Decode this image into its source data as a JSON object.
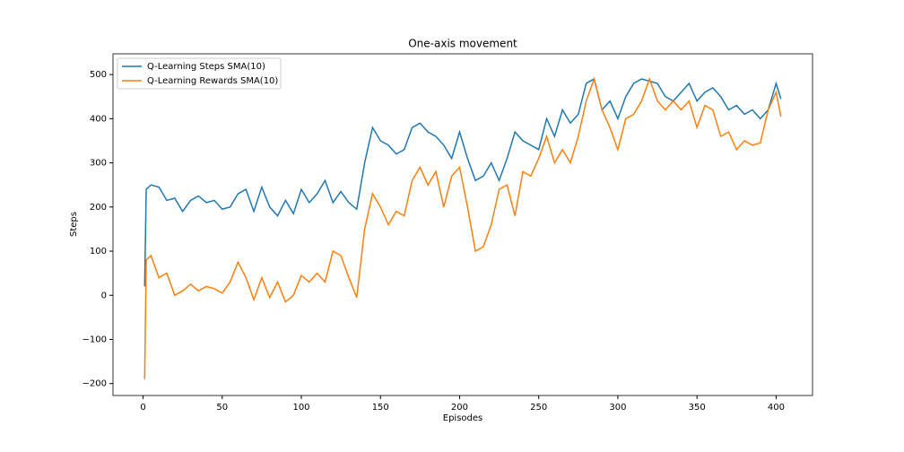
{
  "chart_data": {
    "type": "line",
    "title": "One-axis movement",
    "x_label": "Episodes",
    "y_label": "Steps",
    "x": [
      1,
      2,
      5,
      10,
      15,
      20,
      25,
      30,
      35,
      40,
      45,
      50,
      55,
      60,
      65,
      70,
      75,
      80,
      85,
      90,
      95,
      100,
      105,
      110,
      115,
      120,
      125,
      130,
      135,
      140,
      145,
      150,
      155,
      160,
      165,
      170,
      175,
      180,
      185,
      190,
      195,
      200,
      205,
      210,
      215,
      220,
      225,
      230,
      235,
      240,
      245,
      250,
      255,
      260,
      265,
      270,
      275,
      280,
      285,
      290,
      295,
      300,
      305,
      310,
      315,
      320,
      325,
      330,
      335,
      340,
      345,
      350,
      355,
      360,
      365,
      370,
      375,
      380,
      385,
      390,
      395,
      400,
      403
    ],
    "series": [
      {
        "name": "Q-Learning Steps SMA(10)",
        "color": "#1f77b4",
        "values": [
          20,
          240,
          250,
          245,
          215,
          220,
          190,
          215,
          225,
          210,
          215,
          195,
          200,
          230,
          240,
          190,
          245,
          200,
          180,
          215,
          185,
          240,
          210,
          230,
          260,
          210,
          235,
          210,
          195,
          300,
          380,
          350,
          340,
          320,
          330,
          380,
          390,
          370,
          360,
          340,
          310,
          370,
          310,
          260,
          270,
          300,
          260,
          310,
          370,
          350,
          340,
          330,
          400,
          360,
          420,
          390,
          410,
          480,
          490,
          420,
          440,
          400,
          450,
          480,
          490,
          485,
          480,
          450,
          440,
          460,
          480,
          440,
          460,
          470,
          450,
          420,
          430,
          410,
          420,
          400,
          420,
          480,
          445
        ]
      },
      {
        "name": "Q-Learning Rewards SMA(10)",
        "color": "#ff7f0e",
        "values": [
          -190,
          80,
          90,
          40,
          50,
          0,
          10,
          25,
          10,
          20,
          15,
          5,
          30,
          75,
          40,
          -10,
          40,
          -5,
          30,
          -15,
          0,
          45,
          30,
          50,
          30,
          100,
          90,
          40,
          -5,
          150,
          230,
          200,
          160,
          190,
          180,
          260,
          290,
          250,
          280,
          200,
          270,
          290,
          200,
          100,
          110,
          160,
          240,
          250,
          180,
          280,
          270,
          310,
          360,
          300,
          330,
          300,
          360,
          440,
          490,
          420,
          380,
          330,
          400,
          410,
          440,
          490,
          440,
          420,
          440,
          420,
          440,
          380,
          430,
          420,
          360,
          370,
          330,
          350,
          340,
          345,
          420,
          460,
          405
        ]
      }
    ],
    "xlim": [
      -19,
      423
    ],
    "ylim": [
      -227,
      547
    ],
    "xticks": [
      0,
      50,
      100,
      150,
      200,
      250,
      300,
      350,
      400
    ],
    "yticks": [
      {
        "value": -200,
        "label": "−200"
      },
      {
        "value": -100,
        "label": "−100"
      },
      0,
      100,
      200,
      300,
      400,
      500
    ],
    "grid": false,
    "legend": "upper left"
  }
}
